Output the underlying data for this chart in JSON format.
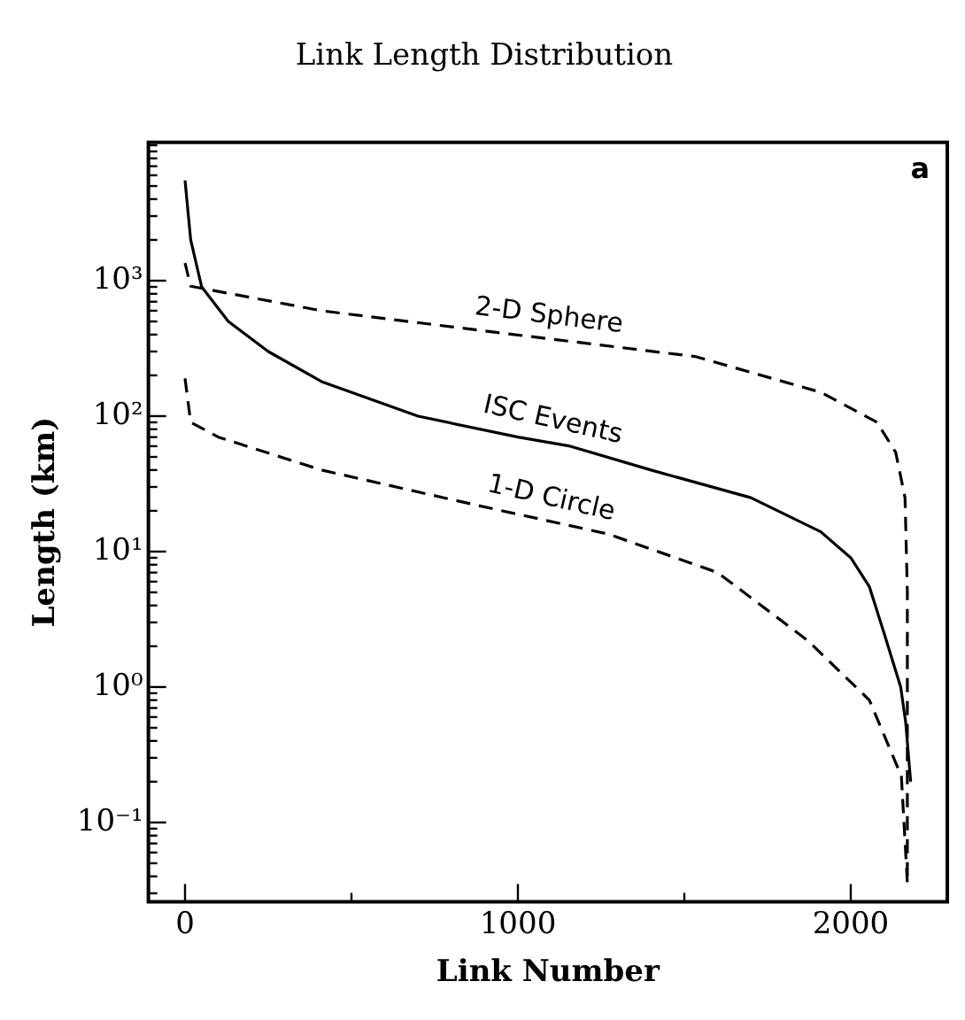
{
  "chart_data": {
    "type": "line",
    "title": "Link Length Distribution",
    "xlabel": "Link Number",
    "ylabel": "Length (km)",
    "xlim": [
      -110,
      2290
    ],
    "xticks": [
      0,
      {
        "value": 500,
        "label": null
      },
      1000,
      {
        "value": 1500,
        "label": null
      },
      2000
    ],
    "ylim": [
      0.026,
      10500
    ],
    "log": true,
    "yticks": [
      {
        "value": 0.03,
        "label": null
      },
      {
        "value": 0.04,
        "label": null
      },
      {
        "value": 0.05,
        "label": null
      },
      {
        "value": 0.06,
        "label": null
      },
      {
        "value": 0.07,
        "label": null
      },
      {
        "value": 0.08,
        "label": null
      },
      {
        "value": 0.09,
        "label": null
      },
      {
        "value": 0.1,
        "label": "10⁻¹"
      },
      {
        "value": 0.2,
        "label": null
      },
      {
        "value": 0.3,
        "label": null
      },
      {
        "value": 0.4,
        "label": null
      },
      {
        "value": 0.5,
        "label": null
      },
      {
        "value": 0.6,
        "label": null
      },
      {
        "value": 0.7,
        "label": null
      },
      {
        "value": 0.8,
        "label": null
      },
      {
        "value": 0.9,
        "label": null
      },
      {
        "value": 1,
        "label": "10⁰"
      },
      {
        "value": 2,
        "label": null
      },
      {
        "value": 3,
        "label": null
      },
      {
        "value": 4,
        "label": null
      },
      {
        "value": 5,
        "label": null
      },
      {
        "value": 6,
        "label": null
      },
      {
        "value": 7,
        "label": null
      },
      {
        "value": 8,
        "label": null
      },
      {
        "value": 9,
        "label": null
      },
      {
        "value": 10,
        "label": "10¹"
      },
      {
        "value": 20,
        "label": null
      },
      {
        "value": 30,
        "label": null
      },
      {
        "value": 40,
        "label": null
      },
      {
        "value": 50,
        "label": null
      },
      {
        "value": 60,
        "label": null
      },
      {
        "value": 70,
        "label": null
      },
      {
        "value": 80,
        "label": null
      },
      {
        "value": 90,
        "label": null
      },
      {
        "value": 100,
        "label": "10²"
      },
      {
        "value": 200,
        "label": null
      },
      {
        "value": 300,
        "label": null
      },
      {
        "value": 400,
        "label": null
      },
      {
        "value": 500,
        "label": null
      },
      {
        "value": 600,
        "label": null
      },
      {
        "value": 700,
        "label": null
      },
      {
        "value": 800,
        "label": null
      },
      {
        "value": 900,
        "label": null
      },
      {
        "value": 1000,
        "label": "10³"
      },
      {
        "value": 2000,
        "label": null
      },
      {
        "value": 3000,
        "label": null
      },
      {
        "value": 4000,
        "label": null
      },
      {
        "value": 5000,
        "label": null
      },
      {
        "value": 6000,
        "label": null
      },
      {
        "value": 7000,
        "label": null
      },
      {
        "value": 8000,
        "label": null
      },
      {
        "value": 9000,
        "label": null
      },
      {
        "value": 10000,
        "label": null
      }
    ],
    "grid": false,
    "legend": false,
    "marker": "none",
    "annotations": [
      "a"
    ],
    "series": [
      {
        "name": "2-D Sphere",
        "color": "#000000",
        "line_style": "dashed",
        "x": [
          0,
          17,
          410,
          972,
          1534,
          1910,
          2079,
          2135,
          2163,
          2170,
          2170
        ],
        "values": [
          1350,
          910,
          600,
          405,
          275,
          150,
          90,
          54,
          25,
          5,
          0.036
        ]
      },
      {
        "name": "ISC Events",
        "color": "#000000",
        "line_style": "solid",
        "x": [
          0,
          17,
          50,
          130,
          250,
          410,
          700,
          1000,
          1157,
          1400,
          1700,
          1910,
          2000,
          2056,
          2100,
          2150,
          2165,
          2180
        ],
        "values": [
          5500,
          2000,
          900,
          500,
          300,
          180,
          100,
          70,
          60,
          40,
          25,
          14,
          9,
          5.5,
          2.5,
          1,
          0.55,
          0.2
        ]
      },
      {
        "name": "1-D Circle",
        "color": "#000000",
        "line_style": "dashed",
        "x": [
          0,
          17,
          100,
          410,
          876,
          1270,
          1600,
          1871,
          2056,
          2152,
          2170
        ],
        "values": [
          190,
          90,
          70,
          40,
          22,
          13.5,
          7,
          2.2,
          0.8,
          0.22,
          0.036
        ]
      }
    ]
  }
}
